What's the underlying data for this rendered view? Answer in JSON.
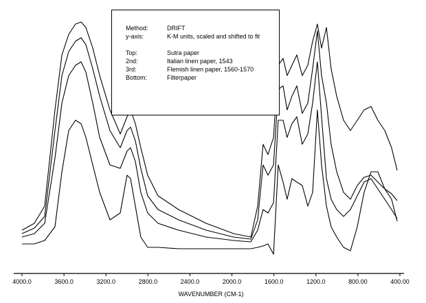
{
  "chart_data": {
    "type": "line",
    "xlabel": "WAVENUMBER (CM-1)",
    "x": [
      4000,
      3882,
      3784,
      3686,
      3620,
      3555,
      3490,
      3437,
      3391,
      3326,
      3260,
      3162,
      3064,
      2999,
      2966,
      2920,
      2868,
      2803,
      2704,
      2508,
      2246,
      1984,
      1820,
      1755,
      1703,
      1657,
      1604,
      1559,
      1513,
      1474,
      1428,
      1382,
      1330,
      1277,
      1231,
      1186,
      1146,
      1100,
      1055,
      1002,
      937,
      871,
      806,
      741,
      675,
      610,
      544,
      479,
      426
    ],
    "series": [
      {
        "name": "Sutra paper",
        "color": "#000000",
        "values": [
          63,
          73,
          98,
          238,
          318,
          348,
          363,
          366,
          358,
          328,
          288,
          238,
          203,
          228,
          238,
          218,
          183,
          143,
          113,
          93,
          73,
          58,
          53,
          98,
          188,
          173,
          198,
          303,
          313,
          288,
          303,
          318,
          288,
          303,
          338,
          363,
          328,
          358,
          298,
          258,
          223,
          208,
          223,
          238,
          243,
          223,
          208,
          183,
          150
        ]
      },
      {
        "name": "Italian linen paper, 1543",
        "color": "#000000",
        "values": [
          58,
          66,
          83,
          208,
          288,
          323,
          338,
          343,
          333,
          298,
          258,
          208,
          183,
          208,
          213,
          193,
          153,
          113,
          93,
          78,
          63,
          53,
          50,
          78,
          158,
          143,
          158,
          268,
          273,
          238,
          258,
          273,
          233,
          248,
          298,
          353,
          288,
          248,
          188,
          148,
          118,
          108,
          128,
          140,
          143,
          133,
          123,
          116,
          106
        ]
      },
      {
        "name": "Flemish linen paper, 1560-1570",
        "color": "#000000",
        "values": [
          53,
          58,
          73,
          168,
          248,
          288,
          303,
          308,
          293,
          248,
          198,
          158,
          153,
          178,
          183,
          163,
          118,
          88,
          73,
          63,
          53,
          48,
          46,
          63,
          93,
          88,
          103,
          223,
          223,
          198,
          218,
          228,
          188,
          203,
          248,
          308,
          228,
          138,
          108,
          93,
          83,
          93,
          113,
          133,
          138,
          123,
          108,
          93,
          80
        ]
      },
      {
        "name": "Filterpaper",
        "color": "#000000",
        "values": [
          43,
          43,
          48,
          68,
          148,
          208,
          223,
          218,
          198,
          158,
          118,
          78,
          88,
          143,
          138,
          98,
          53,
          38,
          38,
          36,
          36,
          36,
          36,
          38,
          40,
          43,
          28,
          158,
          133,
          108,
          138,
          133,
          128,
          98,
          118,
          238,
          158,
          98,
          68,
          53,
          38,
          33,
          68,
          118,
          148,
          148,
          123,
          108,
          76
        ]
      }
    ],
    "xlim": [
      4000,
      400
    ],
    "ylim": [
      0,
      380
    ],
    "xticks": [
      {
        "value": 4000,
        "label": "4000.0"
      },
      {
        "value": 3600,
        "label": "3600.0"
      },
      {
        "value": 3200,
        "label": "3200.0"
      },
      {
        "value": 2800,
        "label": "2800.0"
      },
      {
        "value": 2400,
        "label": "2400.0"
      },
      {
        "value": 2000,
        "label": "2000.0"
      },
      {
        "value": 1600,
        "label": "1600.0"
      },
      {
        "value": 1200,
        "label": "1200.0"
      },
      {
        "value": 800,
        "label": "800.00"
      },
      {
        "value": 400,
        "label": "400.00"
      }
    ],
    "info_box": {
      "method_label": "Method:",
      "method": "DRIFT",
      "yaxis_label": "y-axis:",
      "yaxis": "K-M units, scaled and shifted to fit",
      "series_labels": [
        "Top:",
        "2nd:",
        "3rd:",
        "Bottom:"
      ]
    }
  }
}
